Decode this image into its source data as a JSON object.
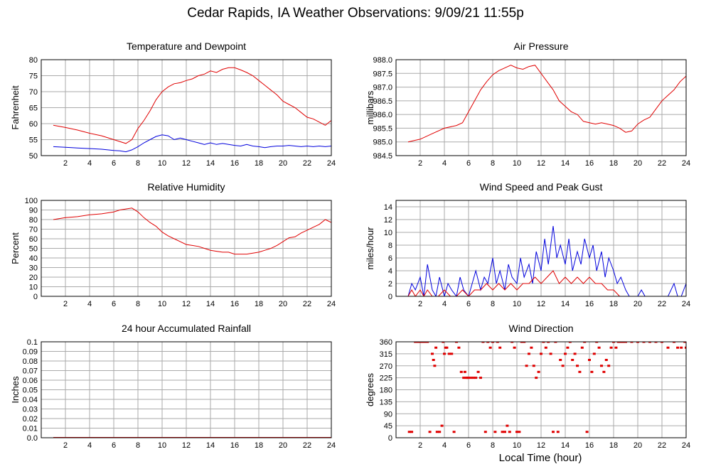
{
  "title": "Cedar Rapids, IA Weather Observations: 9/09/21 11:55p",
  "xaxis_title": "Local Time (hour)",
  "colors": {
    "red": "#e00000",
    "blue": "#0000dd",
    "grid": "#aaaaaa"
  },
  "chart_data": [
    {
      "id": "temp",
      "type": "line",
      "title": "Temperature and Dewpoint",
      "ylabel": "Fahrenheit",
      "xlim": [
        0,
        24
      ],
      "ylim": [
        50,
        80
      ],
      "xticks": [
        2,
        4,
        6,
        8,
        10,
        12,
        14,
        16,
        18,
        20,
        22,
        24
      ],
      "yticks": [
        "50",
        "55",
        "60",
        "65",
        "70",
        "75",
        "80"
      ],
      "ytick_values": [
        50,
        55,
        60,
        65,
        70,
        75,
        80
      ],
      "grid": true,
      "series": [
        {
          "color": "red",
          "x": [
            1.0,
            2.0,
            3.0,
            4.0,
            5.0,
            6.0,
            7.0,
            7.5,
            8.0,
            8.5,
            9.0,
            9.5,
            10.0,
            10.5,
            11.0,
            11.5,
            12.0,
            12.5,
            13.0,
            13.5,
            14.0,
            14.5,
            15.0,
            15.5,
            16.0,
            16.5,
            17.0,
            17.5,
            18.0,
            18.5,
            19.0,
            19.5,
            20.0,
            20.5,
            21.0,
            21.5,
            22.0,
            22.5,
            23.0,
            23.5,
            24.0
          ],
          "values": [
            59.5,
            58.8,
            58.0,
            57.0,
            56.2,
            55.0,
            53.8,
            55.0,
            58.5,
            61.0,
            64.0,
            67.5,
            70.0,
            71.5,
            72.5,
            72.8,
            73.5,
            74.0,
            75.0,
            75.5,
            76.5,
            76.0,
            77.0,
            77.5,
            77.5,
            76.8,
            76.0,
            75.0,
            73.5,
            72.0,
            70.5,
            69.0,
            67.0,
            66.0,
            65.0,
            63.5,
            62.0,
            61.5,
            60.5,
            59.5,
            61.0
          ]
        },
        {
          "color": "blue",
          "x": [
            1.0,
            2.0,
            3.0,
            4.0,
            5.0,
            6.0,
            6.5,
            7.0,
            7.5,
            8.0,
            8.5,
            9.0,
            9.5,
            10.0,
            10.5,
            11.0,
            11.5,
            12.0,
            12.5,
            13.0,
            13.5,
            14.0,
            14.5,
            15.0,
            15.5,
            16.0,
            16.5,
            17.0,
            17.5,
            18.0,
            18.5,
            19.0,
            19.5,
            20.0,
            20.5,
            21.0,
            21.5,
            22.0,
            22.5,
            23.0,
            23.5,
            24.0
          ],
          "values": [
            52.8,
            52.6,
            52.4,
            52.2,
            52.0,
            51.6,
            51.5,
            51.2,
            51.8,
            52.8,
            54.0,
            55.0,
            56.0,
            56.5,
            56.2,
            55.0,
            55.5,
            55.0,
            54.5,
            54.0,
            53.5,
            54.0,
            53.5,
            53.8,
            53.5,
            53.2,
            53.0,
            53.5,
            53.0,
            52.8,
            52.5,
            52.8,
            53.0,
            53.0,
            53.2,
            53.0,
            52.8,
            53.0,
            52.8,
            53.0,
            52.8,
            53.0
          ]
        }
      ]
    },
    {
      "id": "pressure",
      "type": "line",
      "title": "Air Pressure",
      "ylabel": "millibars",
      "xlim": [
        0,
        24
      ],
      "ylim": [
        984.5,
        988.0
      ],
      "xticks": [
        2,
        4,
        6,
        8,
        10,
        12,
        14,
        16,
        18,
        20,
        22,
        24
      ],
      "yticks": [
        "984.5",
        "985.0",
        "985.5",
        "986.0",
        "986.5",
        "987.0",
        "987.5",
        "988.0"
      ],
      "ytick_values": [
        984.5,
        985.0,
        985.5,
        986.0,
        986.5,
        987.0,
        987.5,
        988.0
      ],
      "grid": true,
      "series": [
        {
          "color": "red",
          "x": [
            1.0,
            1.5,
            2.0,
            3.0,
            4.0,
            5.0,
            5.5,
            6.0,
            6.5,
            7.0,
            7.5,
            8.0,
            8.5,
            9.0,
            9.5,
            10.0,
            10.5,
            11.0,
            11.5,
            12.0,
            12.5,
            13.0,
            13.5,
            14.0,
            14.5,
            15.0,
            15.5,
            16.0,
            16.5,
            17.0,
            17.5,
            18.0,
            18.5,
            19.0,
            19.5,
            20.0,
            20.5,
            21.0,
            21.5,
            22.0,
            22.5,
            23.0,
            23.5,
            24.0
          ],
          "values": [
            985.0,
            985.05,
            985.1,
            985.3,
            985.5,
            985.6,
            985.7,
            986.1,
            986.5,
            986.9,
            987.2,
            987.45,
            987.6,
            987.7,
            987.8,
            987.7,
            987.65,
            987.75,
            987.8,
            987.5,
            987.2,
            986.9,
            986.5,
            986.3,
            986.1,
            986.0,
            985.75,
            985.7,
            985.65,
            985.7,
            985.65,
            985.6,
            985.5,
            985.35,
            985.4,
            985.65,
            985.8,
            985.9,
            986.2,
            986.5,
            986.7,
            986.9,
            987.2,
            987.4
          ]
        }
      ]
    },
    {
      "id": "humidity",
      "type": "line",
      "title": "Relative Humidity",
      "ylabel": "Percent",
      "xlim": [
        0,
        24
      ],
      "ylim": [
        0,
        100
      ],
      "xticks": [
        2,
        4,
        6,
        8,
        10,
        12,
        14,
        16,
        18,
        20,
        22,
        24
      ],
      "yticks": [
        "0",
        "10",
        "20",
        "30",
        "40",
        "50",
        "60",
        "70",
        "80",
        "90",
        "100"
      ],
      "ytick_values": [
        0,
        10,
        20,
        30,
        40,
        50,
        60,
        70,
        80,
        90,
        100
      ],
      "grid": true,
      "series": [
        {
          "color": "red",
          "x": [
            1.0,
            2.0,
            3.0,
            4.0,
            5.0,
            6.0,
            6.5,
            7.0,
            7.5,
            8.0,
            8.5,
            9.0,
            9.5,
            10.0,
            10.5,
            11.0,
            11.5,
            12.0,
            12.5,
            13.0,
            13.5,
            14.0,
            14.5,
            15.0,
            15.5,
            16.0,
            16.5,
            17.0,
            17.5,
            18.0,
            18.5,
            19.0,
            19.5,
            20.0,
            20.5,
            21.0,
            21.5,
            22.0,
            22.5,
            23.0,
            23.5,
            24.0
          ],
          "values": [
            80,
            82,
            83,
            85,
            86,
            88,
            90,
            91,
            92,
            88,
            82,
            77,
            73,
            67,
            63,
            60,
            57,
            54,
            53,
            52,
            50,
            48,
            47,
            46,
            46,
            44,
            44,
            44,
            45,
            46,
            48,
            50,
            53,
            57,
            61,
            62,
            66,
            69,
            72,
            75,
            80,
            77
          ]
        }
      ]
    },
    {
      "id": "wind",
      "type": "line",
      "title": "Wind Speed and Peak Gust",
      "ylabel": "miles/hour",
      "xlim": [
        0,
        24
      ],
      "ylim": [
        0,
        15
      ],
      "xticks": [
        2,
        4,
        6,
        8,
        10,
        12,
        14,
        16,
        18,
        20,
        22,
        24
      ],
      "yticks": [
        "0",
        "2",
        "4",
        "6",
        "8",
        "10",
        "12",
        "14"
      ],
      "ytick_values": [
        0,
        2,
        4,
        6,
        8,
        10,
        12,
        14
      ],
      "grid": true,
      "series": [
        {
          "color": "blue",
          "x": [
            1.0,
            1.3,
            1.6,
            2.0,
            2.3,
            2.6,
            3.0,
            3.3,
            3.6,
            4.0,
            4.3,
            4.6,
            5.0,
            5.3,
            5.6,
            6.0,
            6.3,
            6.6,
            7.0,
            7.3,
            7.6,
            8.0,
            8.3,
            8.6,
            9.0,
            9.3,
            9.6,
            10.0,
            10.3,
            10.6,
            11.0,
            11.3,
            11.6,
            12.0,
            12.3,
            12.6,
            13.0,
            13.3,
            13.6,
            14.0,
            14.3,
            14.6,
            15.0,
            15.3,
            15.6,
            16.0,
            16.3,
            16.6,
            17.0,
            17.3,
            17.6,
            18.0,
            18.3,
            18.6,
            19.0,
            19.3,
            19.6,
            20.0,
            20.3,
            20.6,
            21.0,
            21.5,
            22.0,
            22.5,
            23.0,
            23.3,
            23.6,
            24.0
          ],
          "values": [
            0,
            2,
            1,
            3,
            0,
            5,
            1,
            0,
            3,
            0,
            2,
            1,
            0,
            3,
            1,
            0,
            2,
            4,
            1,
            3,
            2,
            6,
            2,
            4,
            1,
            5,
            3,
            2,
            6,
            3,
            5,
            2,
            7,
            4,
            9,
            5,
            11,
            6,
            8,
            5,
            9,
            4,
            7,
            5,
            9,
            6,
            8,
            4,
            7,
            3,
            6,
            4,
            2,
            3,
            1,
            0,
            0,
            0,
            1,
            0,
            0,
            0,
            0,
            0,
            2,
            0,
            0,
            2
          ]
        },
        {
          "color": "red",
          "x": [
            1.0,
            1.3,
            1.6,
            2.0,
            2.3,
            2.6,
            3.0,
            3.5,
            4.0,
            4.5,
            5.0,
            5.5,
            6.0,
            6.5,
            7.0,
            7.5,
            8.0,
            8.5,
            9.0,
            9.5,
            10.0,
            10.5,
            11.0,
            11.5,
            12.0,
            12.5,
            13.0,
            13.5,
            14.0,
            14.5,
            15.0,
            15.5,
            16.0,
            16.5,
            17.0,
            17.5,
            18.0,
            18.5,
            19.0,
            20.0,
            21.0,
            22.0,
            23.0,
            24.0
          ],
          "values": [
            0,
            1,
            0,
            1,
            0,
            1,
            0,
            0,
            1,
            0,
            0,
            1,
            0,
            1,
            1,
            2,
            1,
            2,
            1,
            2,
            1,
            2,
            2,
            3,
            2,
            3,
            4,
            2,
            3,
            2,
            3,
            2,
            3,
            2,
            2,
            1,
            1,
            0,
            0,
            0,
            0,
            0,
            0,
            0
          ]
        }
      ]
    },
    {
      "id": "rain",
      "type": "line",
      "title": "24 hour Accumulated Rainfall",
      "ylabel": "Inches",
      "xlim": [
        0,
        24
      ],
      "ylim": [
        0,
        0.1
      ],
      "xticks": [
        2,
        4,
        6,
        8,
        10,
        12,
        14,
        16,
        18,
        20,
        22,
        24
      ],
      "yticks": [
        "0.0",
        "0.01",
        "0.02",
        "0.03",
        "0.04",
        "0.05",
        "0.06",
        "0.07",
        "0.08",
        "0.09",
        "0.1"
      ],
      "ytick_values": [
        0,
        0.01,
        0.02,
        0.03,
        0.04,
        0.05,
        0.06,
        0.07,
        0.08,
        0.09,
        0.1
      ],
      "grid": true,
      "series": [
        {
          "color": "red",
          "x": [
            1.0,
            24.0
          ],
          "values": [
            0,
            0
          ]
        }
      ]
    },
    {
      "id": "direction",
      "type": "scatter",
      "title": "Wind Direction",
      "ylabel": "degrees",
      "xlim": [
        0,
        24
      ],
      "ylim": [
        0,
        360
      ],
      "xticks": [
        2,
        4,
        6,
        8,
        10,
        12,
        14,
        16,
        18,
        20,
        22,
        24
      ],
      "yticks": [
        "0",
        "45",
        "90",
        "135",
        "180",
        "225",
        "270",
        "315",
        "360"
      ],
      "ytick_values": [
        0,
        45,
        90,
        135,
        180,
        225,
        270,
        315,
        360
      ],
      "grid": true,
      "series": [
        {
          "color": "red",
          "x": [
            1.1,
            1.3,
            1.6,
            1.8,
            2.0,
            2.2,
            2.4,
            2.6,
            2.8,
            3.0,
            3.1,
            3.2,
            3.3,
            3.4,
            3.6,
            3.8,
            3.9,
            4.0,
            4.1,
            4.2,
            4.4,
            4.6,
            4.8,
            5.0,
            5.2,
            5.4,
            5.6,
            5.7,
            5.8,
            5.9,
            6.0,
            6.2,
            6.4,
            6.6,
            6.8,
            7.0,
            7.2,
            7.4,
            7.6,
            7.8,
            8.0,
            8.2,
            8.4,
            8.6,
            8.8,
            9.0,
            9.2,
            9.4,
            9.6,
            9.8,
            10.0,
            10.2,
            10.4,
            10.6,
            10.8,
            11.0,
            11.2,
            11.4,
            11.6,
            11.8,
            12.0,
            12.2,
            12.4,
            12.6,
            12.8,
            13.0,
            13.2,
            13.4,
            13.6,
            13.8,
            14.0,
            14.2,
            14.4,
            14.6,
            14.8,
            15.0,
            15.2,
            15.4,
            15.6,
            15.8,
            16.0,
            16.2,
            16.4,
            16.6,
            16.8,
            17.0,
            17.2,
            17.4,
            17.6,
            17.8,
            18.0,
            18.2,
            18.4,
            18.6,
            18.8,
            19.0,
            19.5,
            20.0,
            20.5,
            21.0,
            21.5,
            22.0,
            22.5,
            23.0,
            23.3,
            23.6,
            23.9,
            24.0
          ],
          "values": [
            22,
            22,
            360,
            360,
            360,
            360,
            360,
            360,
            22,
            315,
            292,
            270,
            338,
            22,
            22,
            45,
            360,
            315,
            338,
            338,
            315,
            315,
            22,
            360,
            338,
            247,
            225,
            247,
            225,
            225,
            225,
            225,
            225,
            225,
            247,
            225,
            360,
            22,
            360,
            338,
            360,
            22,
            360,
            338,
            22,
            22,
            45,
            22,
            360,
            338,
            22,
            22,
            360,
            360,
            270,
            315,
            338,
            270,
            225,
            247,
            315,
            360,
            338,
            360,
            315,
            22,
            360,
            22,
            292,
            270,
            315,
            338,
            360,
            292,
            315,
            270,
            247,
            338,
            360,
            22,
            292,
            247,
            315,
            360,
            338,
            270,
            247,
            292,
            270,
            338,
            360,
            338,
            360,
            360,
            360,
            360,
            360,
            360,
            360,
            360,
            360,
            360,
            338,
            360,
            338,
            338,
            360,
            338
          ]
        }
      ]
    }
  ]
}
